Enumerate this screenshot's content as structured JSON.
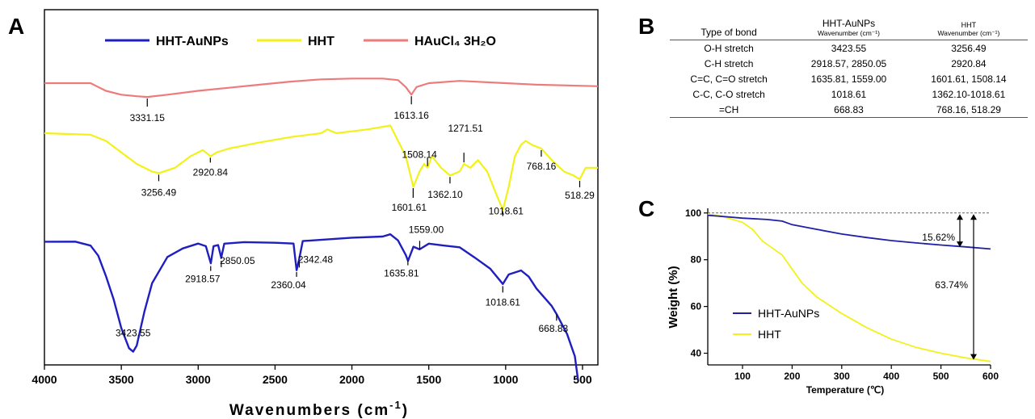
{
  "panels": {
    "a": "A",
    "b": "B",
    "c": "C"
  },
  "table": {
    "headers": [
      {
        "main": "Type of bond",
        "sub": ""
      },
      {
        "main": "HHT-AuNPs",
        "sub": "Wavenumber (cm⁻¹)"
      },
      {
        "main": "HHT",
        "sub": "Wavenumber (cm⁻¹)"
      }
    ],
    "rows": [
      [
        "O-H stretch",
        "3423.55",
        "3256.49"
      ],
      [
        "C-H stretch",
        "2918.57, 2850.05",
        "2920.84"
      ],
      [
        "C=C, C=O stretch",
        "1635.81, 1559.00",
        "1601.61, 1508.14"
      ],
      [
        "C-C, C-O stretch",
        "1018.61",
        "1362.10-1018.61"
      ],
      [
        "=CH",
        "668.83",
        "768.16, 518.29"
      ]
    ]
  },
  "chart_data": [
    {
      "type": "line",
      "xlabel": "Wavenumbers (cm",
      "xlabel_sup": "-1",
      "xlabel_close": ")",
      "xlim": [
        4000,
        400
      ],
      "xticks": [
        "4000",
        "3500",
        "3000",
        "2500",
        "2000",
        "1500",
        "1000",
        "500"
      ],
      "y_axis": "none",
      "legend_position": "top",
      "series": [
        {
          "name": "HHT-AuNPs",
          "color": "#1f1fbf",
          "y_level": 0.75,
          "points": [
            [
              4000,
              0.0
            ],
            [
              3800,
              0.02
            ],
            [
              3700,
              0.08
            ],
            [
              3650,
              0.25
            ],
            [
              3600,
              0.6
            ],
            [
              3550,
              1.0
            ],
            [
              3500,
              1.5
            ],
            [
              3450,
              1.85
            ],
            [
              3423,
              1.95
            ],
            [
              3400,
              1.8
            ],
            [
              3350,
              1.2
            ],
            [
              3300,
              0.7
            ],
            [
              3200,
              0.25
            ],
            [
              3100,
              0.12
            ],
            [
              3000,
              0.05
            ],
            [
              2950,
              0.1
            ],
            [
              2918,
              0.4
            ],
            [
              2900,
              0.1
            ],
            [
              2870,
              0.05
            ],
            [
              2850,
              0.3
            ],
            [
              2830,
              0.05
            ],
            [
              2700,
              0.0
            ],
            [
              2500,
              -0.02
            ],
            [
              2380,
              0.0
            ],
            [
              2360,
              0.5
            ],
            [
              2342,
              0.3
            ],
            [
              2320,
              0.0
            ],
            [
              2000,
              -0.05
            ],
            [
              1800,
              -0.1
            ],
            [
              1750,
              -0.15
            ],
            [
              1700,
              -0.05
            ],
            [
              1650,
              0.2
            ],
            [
              1635,
              0.3
            ],
            [
              1600,
              0.05
            ],
            [
              1560,
              0.15
            ],
            [
              1500,
              0.0
            ],
            [
              1400,
              0.05
            ],
            [
              1300,
              0.1
            ],
            [
              1200,
              0.3
            ],
            [
              1100,
              0.5
            ],
            [
              1018,
              0.75
            ],
            [
              980,
              0.6
            ],
            [
              900,
              0.5
            ],
            [
              850,
              0.6
            ],
            [
              800,
              0.8
            ],
            [
              700,
              1.1
            ],
            [
              668,
              1.25
            ],
            [
              600,
              1.6
            ],
            [
              550,
              2.0
            ],
            [
              530,
              2.4
            ]
          ]
        },
        {
          "name": "HHT",
          "color": "#f2f21a",
          "y_level": 0.15,
          "points": [
            [
              4000,
              0.0
            ],
            [
              3700,
              0.02
            ],
            [
              3600,
              0.1
            ],
            [
              3500,
              0.25
            ],
            [
              3400,
              0.4
            ],
            [
              3300,
              0.5
            ],
            [
              3256,
              0.52
            ],
            [
              3150,
              0.45
            ],
            [
              3050,
              0.3
            ],
            [
              2970,
              0.22
            ],
            [
              2920,
              0.3
            ],
            [
              2880,
              0.25
            ],
            [
              2800,
              0.2
            ],
            [
              2600,
              0.12
            ],
            [
              2400,
              0.05
            ],
            [
              2200,
              0.0
            ],
            [
              2160,
              -0.05
            ],
            [
              2100,
              0.0
            ],
            [
              1900,
              -0.05
            ],
            [
              1750,
              -0.1
            ],
            [
              1700,
              0.1
            ],
            [
              1650,
              0.3
            ],
            [
              1601,
              0.7
            ],
            [
              1560,
              0.5
            ],
            [
              1530,
              0.4
            ],
            [
              1508,
              0.45
            ],
            [
              1480,
              0.3
            ],
            [
              1420,
              0.45
            ],
            [
              1362,
              0.55
            ],
            [
              1300,
              0.5
            ],
            [
              1271,
              0.4
            ],
            [
              1230,
              0.45
            ],
            [
              1180,
              0.35
            ],
            [
              1120,
              0.5
            ],
            [
              1060,
              0.8
            ],
            [
              1018,
              1.0
            ],
            [
              980,
              0.7
            ],
            [
              940,
              0.3
            ],
            [
              900,
              0.15
            ],
            [
              870,
              0.1
            ],
            [
              830,
              0.15
            ],
            [
              768,
              0.2
            ],
            [
              700,
              0.35
            ],
            [
              620,
              0.5
            ],
            [
              560,
              0.55
            ],
            [
              518,
              0.6
            ],
            [
              480,
              0.45
            ],
            [
              400,
              0.45
            ]
          ]
        },
        {
          "name": "HAuCl₄ 3H₂O",
          "color": "#ee7b7b",
          "y_level": -0.1,
          "points": [
            [
              4000,
              0.0
            ],
            [
              3700,
              0.0
            ],
            [
              3650,
              0.05
            ],
            [
              3600,
              0.1
            ],
            [
              3500,
              0.15
            ],
            [
              3400,
              0.17
            ],
            [
              3331,
              0.18
            ],
            [
              3200,
              0.15
            ],
            [
              3000,
              0.1
            ],
            [
              2800,
              0.06
            ],
            [
              2600,
              0.02
            ],
            [
              2400,
              -0.02
            ],
            [
              2200,
              -0.05
            ],
            [
              2000,
              -0.06
            ],
            [
              1800,
              -0.06
            ],
            [
              1700,
              -0.04
            ],
            [
              1650,
              0.05
            ],
            [
              1613,
              0.15
            ],
            [
              1580,
              0.05
            ],
            [
              1500,
              0.0
            ],
            [
              1300,
              -0.03
            ],
            [
              1000,
              0.0
            ],
            [
              800,
              0.02
            ],
            [
              600,
              0.03
            ],
            [
              400,
              0.04
            ]
          ]
        }
      ],
      "annotations": [
        {
          "label": "3331.15",
          "x": 3331.15,
          "series": 2
        },
        {
          "label": "1613.16",
          "x": 1613.16,
          "series": 2
        },
        {
          "label": "3256.49",
          "x": 3256.49,
          "series": 1
        },
        {
          "label": "2920.84",
          "x": 2920.84,
          "series": 1
        },
        {
          "label": "1508.14",
          "x": 1508.14,
          "series": 1
        },
        {
          "label": "1271.51",
          "x": 1271.51,
          "series": 1
        },
        {
          "label": "1601.61",
          "x": 1601.61,
          "series": 1
        },
        {
          "label": "1362.10",
          "x": 1362.1,
          "series": 1
        },
        {
          "label": "768.16",
          "x": 768.16,
          "series": 1
        },
        {
          "label": "1018.61",
          "x": 1018.61,
          "series": 1
        },
        {
          "label": "518.29",
          "x": 518.29,
          "series": 1
        },
        {
          "label": "1559.00",
          "x": 1559.0,
          "series": 0
        },
        {
          "label": "2918.57",
          "x": 2918.57,
          "series": 0
        },
        {
          "label": "2850.05",
          "x": 2850.05,
          "series": 0
        },
        {
          "label": "2360.04",
          "x": 2360.04,
          "series": 0
        },
        {
          "label": "2342.48",
          "x": 2342.48,
          "series": 0
        },
        {
          "label": "1635.81",
          "x": 1635.81,
          "series": 0
        },
        {
          "label": "1018.61",
          "x": 1018.61,
          "series": 0
        },
        {
          "label": "3423.55",
          "x": 3423.55,
          "series": 0
        },
        {
          "label": "668.83",
          "x": 668.83,
          "series": 0
        }
      ]
    },
    {
      "type": "line",
      "xlabel": "Temperature (℃)",
      "ylabel": "Weight (%)",
      "xlim": [
        30,
        600
      ],
      "ylim": [
        35,
        102
      ],
      "xticks": [
        100,
        200,
        300,
        400,
        500,
        600
      ],
      "yticks": [
        40,
        60,
        80,
        100
      ],
      "reference_line": 100,
      "legend_position": "bottom-left",
      "series": [
        {
          "name": "HHT-AuNPs",
          "color": "#1f1fa8",
          "x": [
            30,
            60,
            100,
            150,
            180,
            200,
            250,
            300,
            350,
            400,
            450,
            500,
            550,
            600
          ],
          "y": [
            99,
            98.5,
            97.8,
            97.2,
            96.5,
            95,
            93,
            91,
            89.5,
            88.2,
            87.2,
            86.3,
            85.5,
            84.6
          ]
        },
        {
          "name": "HHT",
          "color": "#f2f21a",
          "x": [
            30,
            60,
            100,
            120,
            140,
            160,
            180,
            200,
            220,
            250,
            300,
            350,
            400,
            450,
            500,
            550,
            600
          ],
          "y": [
            99.5,
            98.5,
            96,
            93,
            88,
            85,
            82,
            76,
            70,
            64,
            57,
            51,
            46,
            42.5,
            40,
            38,
            36.5
          ]
        }
      ],
      "annotations": [
        "15.62%",
        "63.74%"
      ]
    }
  ]
}
